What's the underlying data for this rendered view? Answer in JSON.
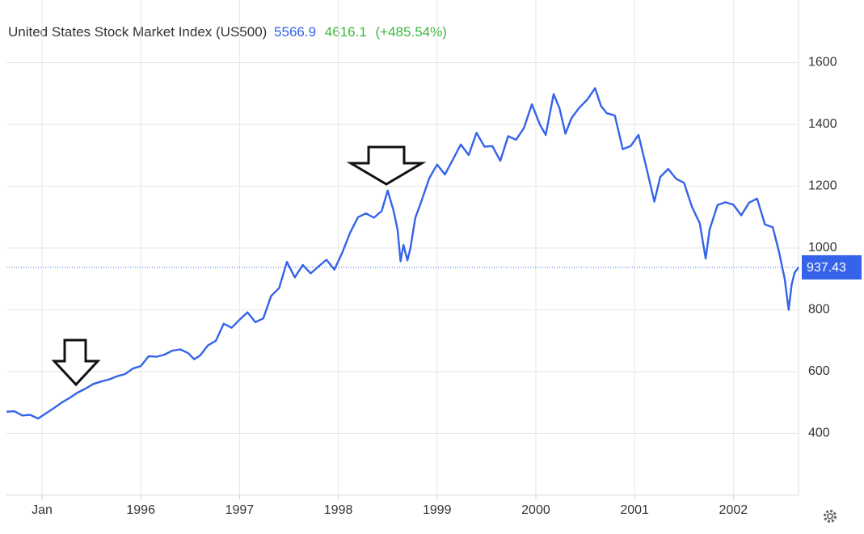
{
  "chart_data": {
    "type": "line",
    "title": "United States Stock Market Index (US500)",
    "stats": [
      "5566.9",
      "4616.1",
      "(+485.54%)"
    ],
    "color": "#3563e9",
    "grid": true,
    "xlim": [
      1994.64,
      2002.66
    ],
    "xticks": [
      {
        "value": 1995,
        "label": "Jan"
      },
      1996,
      1997,
      1998,
      1999,
      2000,
      2001,
      2002
    ],
    "ylim": [
      200,
      1800
    ],
    "yticks": [
      400,
      600,
      800,
      1000,
      1200,
      1400,
      1600
    ],
    "x": [
      1994.64,
      1994.72,
      1994.8,
      1994.88,
      1994.96,
      1995.04,
      1995.12,
      1995.2,
      1995.28,
      1995.36,
      1995.44,
      1995.52,
      1995.6,
      1995.68,
      1995.76,
      1995.84,
      1995.92,
      1996.0,
      1996.08,
      1996.16,
      1996.24,
      1996.32,
      1996.4,
      1996.48,
      1996.54,
      1996.6,
      1996.68,
      1996.76,
      1996.84,
      1996.92,
      1997.0,
      1997.08,
      1997.16,
      1997.24,
      1997.32,
      1997.4,
      1997.48,
      1997.56,
      1997.64,
      1997.72,
      1997.8,
      1997.88,
      1997.96,
      1998.04,
      1998.12,
      1998.2,
      1998.28,
      1998.36,
      1998.44,
      1998.5,
      1998.56,
      1998.6,
      1998.63,
      1998.66,
      1998.7,
      1998.73,
      1998.78,
      1998.84,
      1998.92,
      1999.0,
      1999.08,
      1999.16,
      1999.24,
      1999.32,
      1999.4,
      1999.48,
      1999.56,
      1999.64,
      1999.72,
      1999.8,
      1999.88,
      1999.96,
      2000.04,
      2000.1,
      2000.18,
      2000.24,
      2000.3,
      2000.36,
      2000.44,
      2000.52,
      2000.6,
      2000.66,
      2000.72,
      2000.8,
      2000.88,
      2000.96,
      2001.04,
      2001.12,
      2001.2,
      2001.26,
      2001.34,
      2001.42,
      2001.5,
      2001.58,
      2001.66,
      2001.72,
      2001.76,
      2001.84,
      2001.92,
      2002.0,
      2002.08,
      2002.16,
      2002.24,
      2002.32,
      2002.4,
      2002.46,
      2002.52,
      2002.56,
      2002.59,
      2002.62,
      2002.66
    ],
    "values": [
      470,
      472,
      458,
      460,
      448,
      465,
      482,
      500,
      515,
      532,
      545,
      560,
      568,
      575,
      585,
      592,
      610,
      618,
      650,
      648,
      655,
      668,
      672,
      660,
      640,
      652,
      685,
      700,
      755,
      742,
      768,
      792,
      760,
      772,
      845,
      870,
      955,
      905,
      945,
      918,
      940,
      962,
      930,
      985,
      1050,
      1100,
      1112,
      1098,
      1120,
      1186,
      1120,
      1060,
      957,
      1010,
      960,
      1000,
      1098,
      1150,
      1225,
      1270,
      1238,
      1286,
      1335,
      1301,
      1373,
      1328,
      1330,
      1282,
      1362,
      1350,
      1389,
      1465,
      1400,
      1366,
      1498,
      1452,
      1370,
      1420,
      1454,
      1480,
      1517,
      1460,
      1436,
      1429,
      1320,
      1330,
      1366,
      1260,
      1150,
      1230,
      1256,
      1224,
      1211,
      1134,
      1080,
      966,
      1060,
      1139,
      1148,
      1140,
      1106,
      1147,
      1160,
      1076,
      1067,
      990,
      900,
      800,
      880,
      920,
      937.43
    ]
  }
}
